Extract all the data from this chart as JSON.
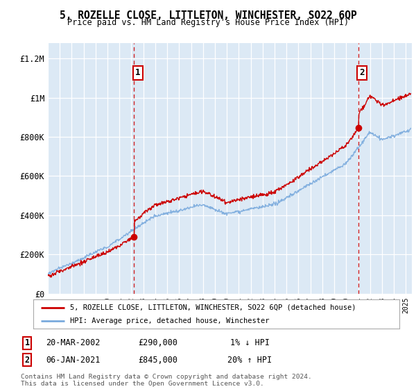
{
  "title": "5, ROZELLE CLOSE, LITTLETON, WINCHESTER, SO22 6QP",
  "subtitle": "Price paid vs. HM Land Registry's House Price Index (HPI)",
  "ylabel_ticks": [
    "£0",
    "£200K",
    "£400K",
    "£600K",
    "£800K",
    "£1M",
    "£1.2M"
  ],
  "ylabel_values": [
    0,
    200000,
    400000,
    600000,
    800000,
    1000000,
    1200000
  ],
  "ylim": [
    0,
    1280000
  ],
  "xlim_start": 1995.0,
  "xlim_end": 2025.5,
  "xticks": [
    1995,
    1996,
    1997,
    1998,
    1999,
    2000,
    2001,
    2002,
    2003,
    2004,
    2005,
    2006,
    2007,
    2008,
    2009,
    2010,
    2011,
    2012,
    2013,
    2014,
    2015,
    2016,
    2017,
    2018,
    2019,
    2020,
    2021,
    2022,
    2023,
    2024,
    2025
  ],
  "sale1_x": 2002.22,
  "sale1_y": 290000,
  "sale1_label": "1",
  "sale2_x": 2021.02,
  "sale2_y": 845000,
  "sale2_label": "2",
  "vline1_x": 2002.22,
  "vline2_x": 2021.02,
  "property_color": "#cc0000",
  "hpi_color": "#7aaadd",
  "vline_color": "#cc0000",
  "background_color": "#dce9f5",
  "legend_label1": "5, ROZELLE CLOSE, LITTLETON, WINCHESTER, SO22 6QP (detached house)",
  "legend_label2": "HPI: Average price, detached house, Winchester",
  "table_rows": [
    {
      "num": "1",
      "date": "20-MAR-2002",
      "price": "£290,000",
      "hpi": "1% ↓ HPI"
    },
    {
      "num": "2",
      "date": "06-JAN-2021",
      "price": "£845,000",
      "hpi": "20% ↑ HPI"
    }
  ],
  "footer": "Contains HM Land Registry data © Crown copyright and database right 2024.\nThis data is licensed under the Open Government Licence v3.0."
}
